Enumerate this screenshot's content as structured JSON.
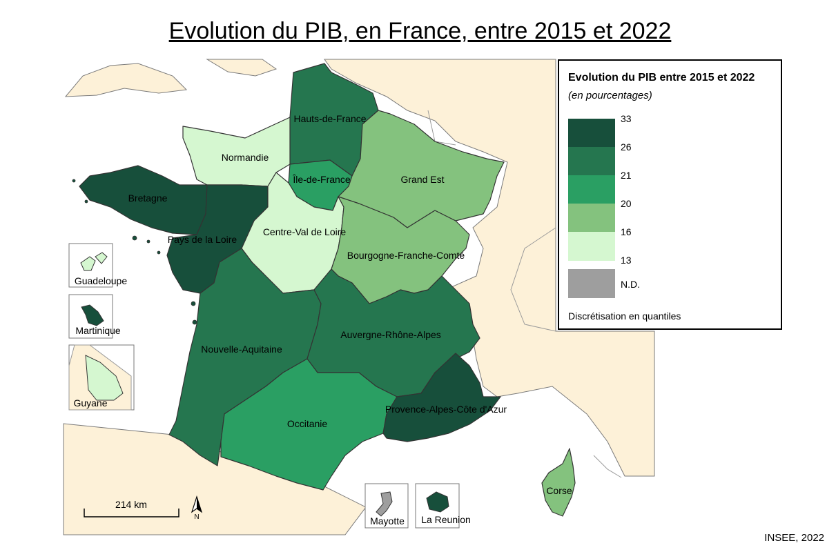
{
  "title": "Evolution du PIB, en France, entre 2015 et 2022",
  "legend": {
    "title": "Evolution du PIB entre 2015 et 2022",
    "subtitle": "(en pourcentages)",
    "breaks": [
      "33",
      "26",
      "21",
      "20",
      "16",
      "13"
    ],
    "nd_label": "N.D.",
    "note": "Discrétisation en quantiles"
  },
  "palette": {
    "c1": "#174f3b",
    "c2": "#25764f",
    "c3": "#2a9f63",
    "c4": "#84c27e",
    "c5": "#d5f7d0",
    "nd": "#9e9e9e",
    "land": "#fdf1d8",
    "sea": "#ffffff"
  },
  "regions": [
    {
      "name": "Hauts-de-France",
      "class": "c2"
    },
    {
      "name": "Normandie",
      "class": "c5"
    },
    {
      "name": "Île-de-France",
      "class": "c3"
    },
    {
      "name": "Grand Est",
      "class": "c4"
    },
    {
      "name": "Bretagne",
      "class": "c1"
    },
    {
      "name": "Pays de la Loire",
      "class": "c1"
    },
    {
      "name": "Centre-Val de Loire",
      "class": "c5"
    },
    {
      "name": "Bourgogne-Franche-Comté",
      "class": "c4"
    },
    {
      "name": "Nouvelle-Aquitaine",
      "class": "c2"
    },
    {
      "name": "Auvergne-Rhône-Alpes",
      "class": "c2"
    },
    {
      "name": "Occitanie",
      "class": "c3"
    },
    {
      "name": "Provence-Alpes-Côte d'Azur",
      "class": "c1"
    },
    {
      "name": "Corse",
      "class": "c4"
    },
    {
      "name": "Guadeloupe",
      "class": "c5"
    },
    {
      "name": "Martinique",
      "class": "c1"
    },
    {
      "name": "Guyane",
      "class": "c5"
    },
    {
      "name": "Mayotte",
      "class": "nd"
    },
    {
      "name": "La Reunion",
      "class": "c1"
    }
  ],
  "scale_bar": "214 km",
  "north": "N",
  "credit": "INSEE, 2022"
}
